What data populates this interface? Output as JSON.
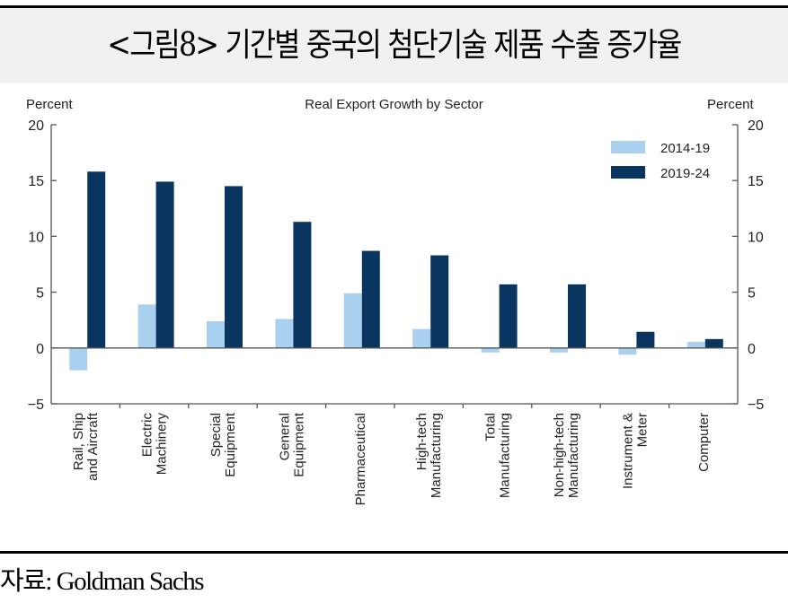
{
  "figure": {
    "title": "<그림8> 기간별 중국의 첨단기술 제품 수출 증가율",
    "source": "자료: Goldman Sachs"
  },
  "colors": {
    "series_light": "#a9d0ee",
    "series_dark": "#0a3560",
    "axis": "#555555",
    "header_band": "#f1f1f1"
  },
  "chart_data": {
    "type": "bar",
    "title": "Real Export Growth by Sector",
    "ylabel_left": "Percent",
    "ylabel_right": "Percent",
    "xlabel": "",
    "ylim": [
      -5,
      20
    ],
    "yticks": [
      -5,
      0,
      5,
      10,
      15,
      20
    ],
    "ytick_labels": [
      "−5",
      "0",
      "5",
      "10",
      "15",
      "20"
    ],
    "grid": false,
    "legend_position": "top-right",
    "categories": [
      [
        "Rail, Ship",
        "and Aircraft"
      ],
      [
        "Electric",
        "Machinery"
      ],
      [
        "Special",
        "Equipment"
      ],
      [
        "General",
        "Equipment"
      ],
      [
        "Pharmaceutical"
      ],
      [
        "High-tech",
        "Manufacturing"
      ],
      [
        "Total",
        "Manufacturing"
      ],
      [
        "Non-high-tech",
        "Manufacturing"
      ],
      [
        "Instrument &",
        "Meter"
      ],
      [
        "Computer"
      ]
    ],
    "series": [
      {
        "name": "2014-19",
        "values": [
          -2.0,
          3.9,
          2.4,
          2.6,
          4.9,
          1.7,
          -0.4,
          -0.4,
          -0.6,
          0.55
        ]
      },
      {
        "name": "2019-24",
        "values": [
          15.8,
          14.9,
          14.5,
          11.3,
          8.7,
          8.3,
          5.7,
          5.7,
          1.45,
          0.8
        ]
      }
    ]
  }
}
